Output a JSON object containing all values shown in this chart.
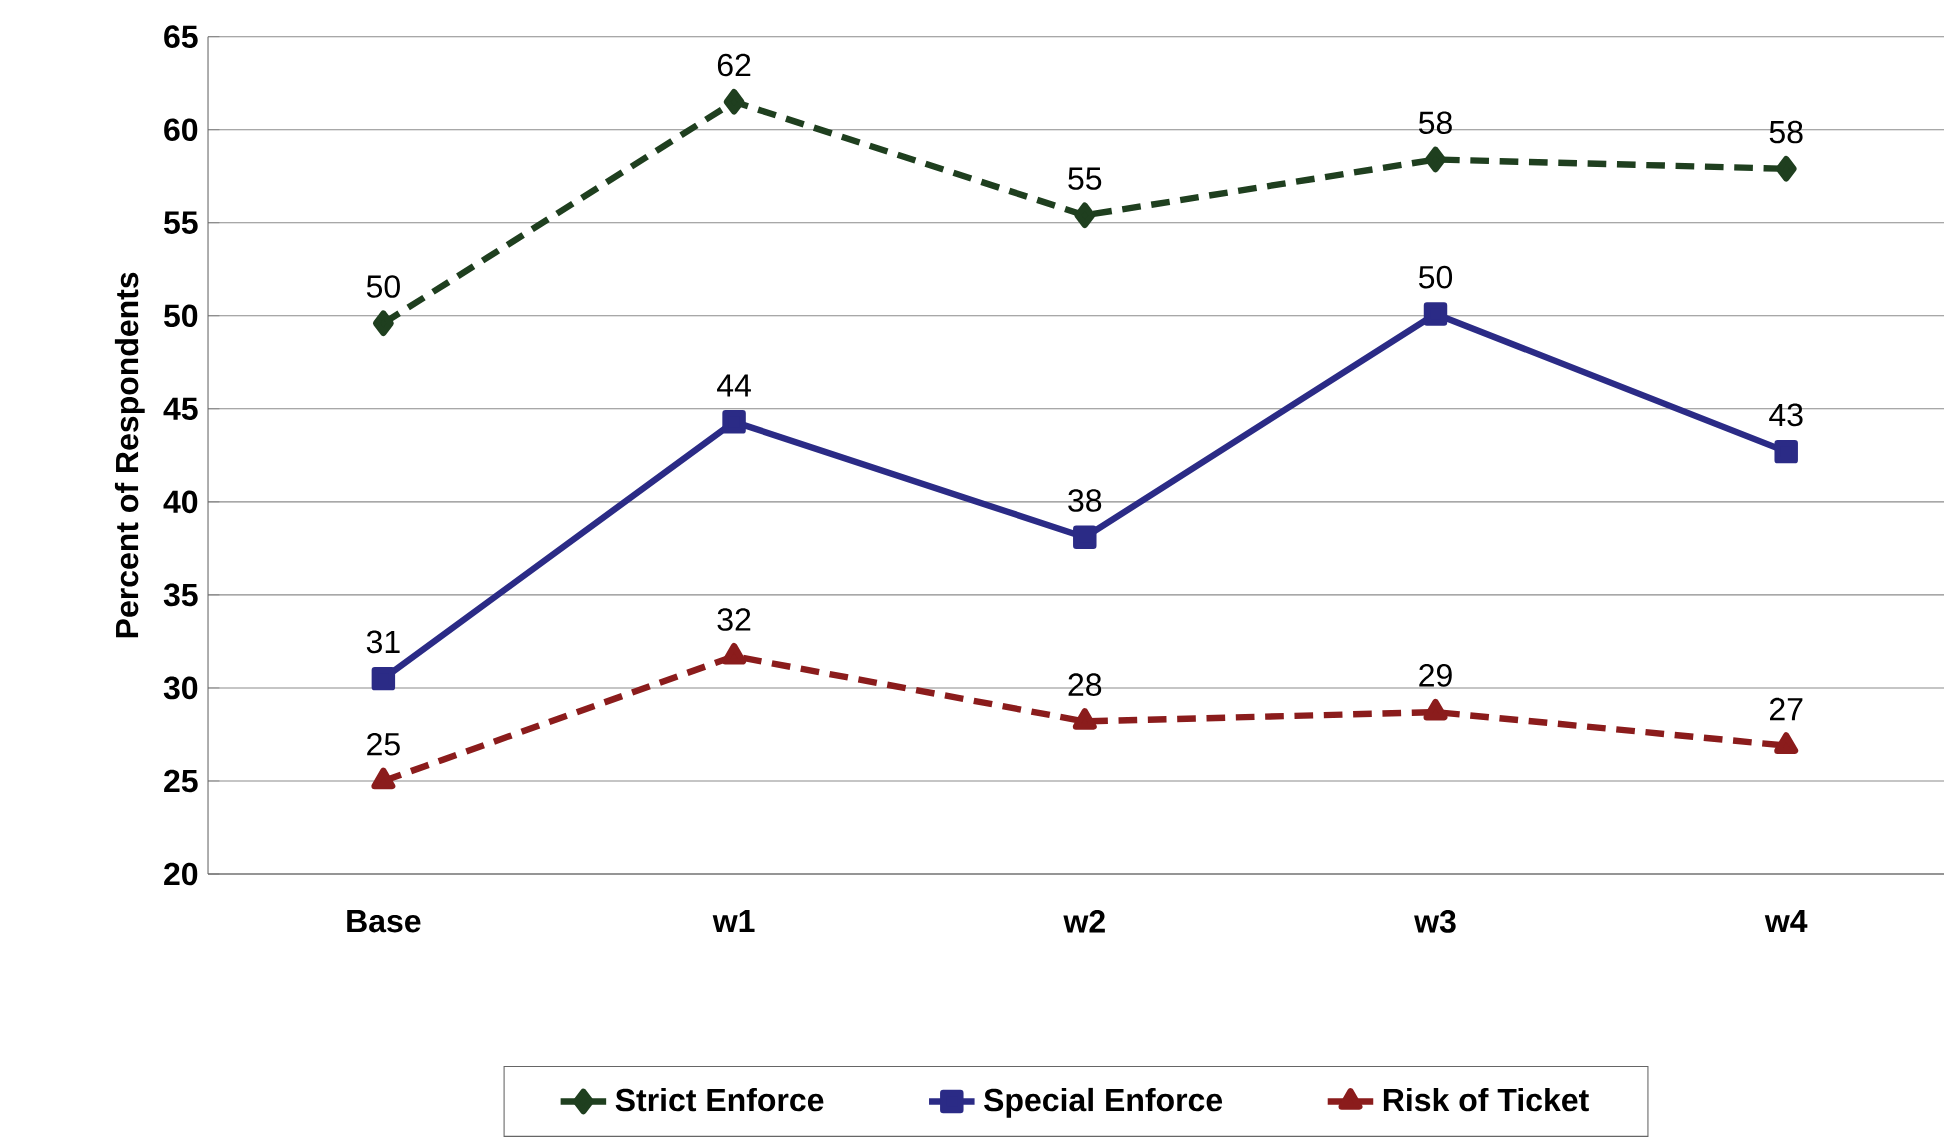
{
  "chart_data": {
    "type": "line",
    "ylabel": "Percent of Respondents",
    "categories": [
      "Base",
      "w1",
      "w2",
      "w3",
      "w4"
    ],
    "series": [
      {
        "name": "Strict Enforce",
        "color": "#1f3f1f",
        "marker": "diamond",
        "line_style": "dashed",
        "values": [
          49.6,
          61.5,
          55.4,
          58.4,
          57.9
        ],
        "value_labels": [
          "50",
          "62",
          "55",
          "58",
          "58"
        ]
      },
      {
        "name": "Special Enforce",
        "color": "#2b2b86",
        "marker": "square",
        "line_style": "solid",
        "values": [
          30.5,
          44.3,
          38.1,
          50.1,
          42.7
        ],
        "value_labels": [
          "31",
          "44",
          "38",
          "50",
          "43"
        ]
      },
      {
        "name": "Risk of Ticket",
        "color": "#8b1c1c",
        "marker": "triangle",
        "line_style": "dashed",
        "values": [
          25.0,
          31.7,
          28.2,
          28.7,
          26.9
        ],
        "value_labels": [
          "25",
          "32",
          "28",
          "29",
          "27"
        ]
      }
    ],
    "ylim": [
      20,
      65
    ],
    "yticks": [
      20,
      25,
      30,
      35,
      40,
      45,
      50,
      55,
      60,
      65
    ],
    "grid": "y",
    "legend": "bottom"
  }
}
